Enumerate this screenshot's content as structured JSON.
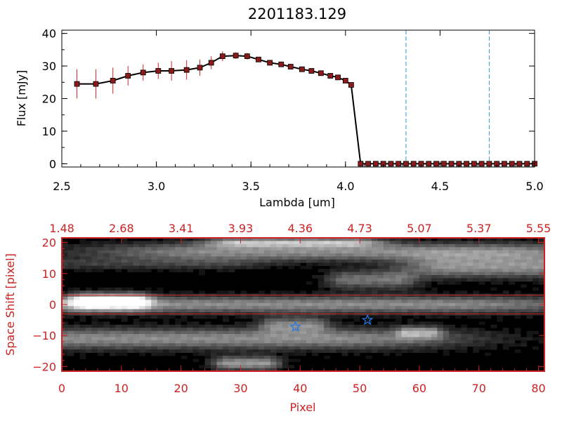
{
  "page": {
    "background": "#ffffff"
  },
  "chart_data": [
    {
      "type": "line",
      "title": "2201183.129",
      "xlabel": "Lambda [um]",
      "ylabel": "Flux [mJy]",
      "xlim": [
        2.5,
        5.0
      ],
      "ylim": [
        -1,
        41
      ],
      "xticks": [
        2.5,
        3.0,
        3.5,
        4.0,
        4.5,
        5.0
      ],
      "xtick_labels": [
        "2.5",
        "3.0",
        "3.5",
        "4.0",
        "4.5",
        "5.0"
      ],
      "yticks": [
        0,
        10,
        20,
        30,
        40
      ],
      "ytick_labels": [
        "0",
        "10",
        "20",
        "30",
        "40"
      ],
      "grid": false,
      "colors": {
        "line": "#000000",
        "marker": "#8b1a1a",
        "errorbar": "#dd2222",
        "vline": "#3399cc",
        "axis": "#000000"
      },
      "vlines": [
        4.32,
        4.76
      ],
      "series": [
        {
          "x": [
            2.58,
            2.68,
            2.77,
            2.85,
            2.93,
            3.01,
            3.08,
            3.16,
            3.23,
            3.29,
            3.35,
            3.42,
            3.48,
            3.54,
            3.6,
            3.66,
            3.71,
            3.77,
            3.82,
            3.87,
            3.92,
            3.96,
            4.0,
            4.03,
            4.08,
            4.12,
            4.16,
            4.2,
            4.24,
            4.28,
            4.32,
            4.36,
            4.4,
            4.44,
            4.48,
            4.52,
            4.56,
            4.6,
            4.64,
            4.68,
            4.72,
            4.76,
            4.8,
            4.84,
            4.88,
            4.92,
            4.96,
            5.0
          ],
          "y": [
            24.5,
            24.5,
            25.5,
            27.0,
            28.0,
            28.5,
            28.5,
            28.8,
            29.5,
            31.0,
            33.0,
            33.2,
            33.0,
            32.0,
            31.0,
            30.5,
            29.8,
            29.0,
            28.5,
            27.8,
            27.0,
            26.5,
            25.5,
            24.2,
            0,
            0,
            0,
            0,
            0,
            0,
            0,
            0,
            0,
            0,
            0,
            0,
            0,
            0,
            0,
            0,
            0,
            0,
            0,
            0,
            0,
            0,
            0,
            0
          ],
          "yerr": [
            4.5,
            4.5,
            4.0,
            3.0,
            2.5,
            2.5,
            3.0,
            3.0,
            2.5,
            2.0,
            1.5,
            1.0,
            1.0,
            0.8,
            0.7,
            0.6,
            0.6,
            0.6,
            0.5,
            0.5,
            0.5,
            0.5,
            0.5,
            0.5,
            0,
            0,
            0,
            0,
            0,
            0,
            0,
            0,
            0,
            0,
            0,
            0,
            0,
            0,
            0,
            0,
            0,
            0,
            0,
            0,
            0,
            0,
            0,
            0
          ]
        }
      ]
    },
    {
      "type": "heatmap",
      "xlabel": "Pixel",
      "ylabel": "Space Shift [pixel]",
      "xlim": [
        0,
        81
      ],
      "ylim": [
        -21.5,
        21.5
      ],
      "xticks": [
        0,
        10,
        20,
        30,
        40,
        50,
        60,
        70,
        80
      ],
      "xtick_labels": [
        "0",
        "10",
        "20",
        "30",
        "40",
        "50",
        "60",
        "70",
        "80"
      ],
      "yticks": [
        -20,
        -10,
        0,
        10,
        20
      ],
      "ytick_labels": [
        "−20",
        "−10",
        "0",
        "10",
        "20"
      ],
      "top_tick_positions": [
        0,
        10,
        20,
        30,
        40,
        50,
        60,
        70,
        80
      ],
      "top_tick_labels": [
        "1.48",
        "2.68",
        "3.41",
        "3.93",
        "4.36",
        "4.73",
        "5.07",
        "5.37",
        "5.55"
      ],
      "colors": {
        "axis": "#cc2222",
        "hline": "#cc2222",
        "star": "#2277ee"
      },
      "hlines": [
        3,
        -3
      ],
      "markers": [
        {
          "x": 39.2,
          "y": -7.2
        },
        {
          "x": 51.3,
          "y": -5.0
        }
      ],
      "blobs": [
        {
          "x0": 0,
          "x1": 62,
          "y": 0,
          "sigma": 2.8,
          "amp": 0.55,
          "fade": 35
        },
        {
          "x0": 4,
          "x1": 12,
          "y": 1,
          "sigma": 2.5,
          "amp": 0.9,
          "fade": 3
        },
        {
          "x0": 0,
          "x1": 45,
          "y": -11,
          "sigma": 3.5,
          "amp": 0.55,
          "fade": 25
        },
        {
          "x0": 36,
          "x1": 42,
          "y": -6.5,
          "sigma": 2.5,
          "amp": 0.45,
          "fade": 3
        },
        {
          "x0": 28,
          "x1": 34,
          "y": -19,
          "sigma": 2.2,
          "amp": 0.6,
          "fade": 3
        },
        {
          "x0": 28,
          "x1": 70,
          "y": 17,
          "sigma": 3.0,
          "amp": 0.55,
          "fade": 25
        },
        {
          "x0": 30,
          "x1": 48,
          "y": 20,
          "sigma": 1.5,
          "amp": 0.6,
          "fade": 6
        },
        {
          "x0": 48,
          "x1": 56,
          "y": 8,
          "sigma": 3.0,
          "amp": 0.45,
          "fade": 4
        },
        {
          "x0": 65,
          "x1": 81,
          "y": 12,
          "sigma": 3.5,
          "amp": 0.55,
          "fade": 8
        },
        {
          "x0": 58,
          "x1": 62,
          "y": -9,
          "sigma": 2.0,
          "amp": 0.45,
          "fade": 2
        },
        {
          "x0": 0,
          "x1": 25,
          "y": 13,
          "sigma": 2.0,
          "amp": 0.2,
          "fade": 10
        }
      ]
    }
  ]
}
